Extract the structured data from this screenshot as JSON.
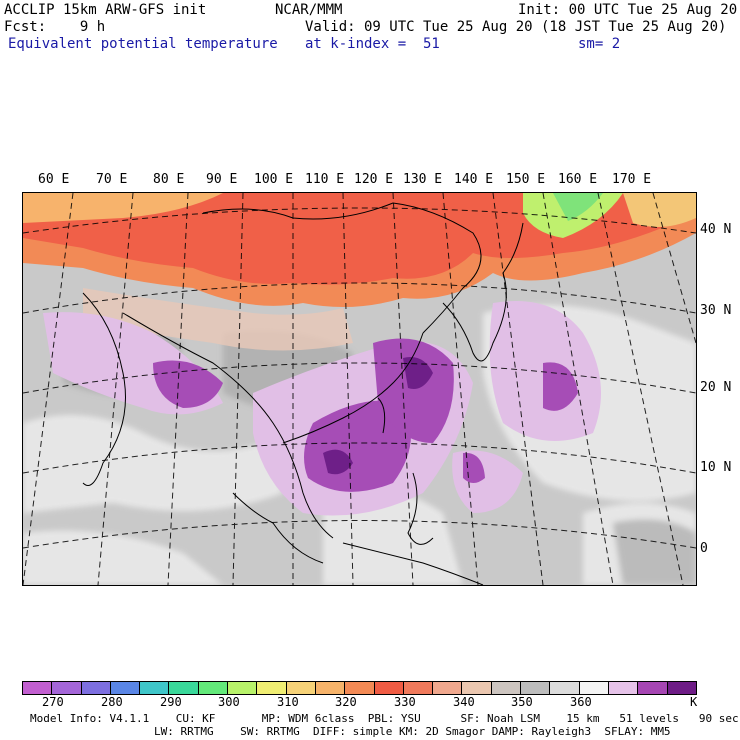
{
  "header": {
    "line1_left": "ACCLIP 15km ARW-GFS init",
    "line1_mid": "NCAR/MMM",
    "line1_right": "Init: 00 UTC Tue 25 Aug 20",
    "line2_left": "Fcst:    9 h",
    "line2_right": "Valid: 09 UTC Tue 25 Aug 20 (18 JST Tue 25 Aug 20)",
    "line3_left": "Equivalent potential temperature",
    "line3_mid": "at k-index =  51",
    "line3_right": "sm= 2"
  },
  "longitude_labels": [
    "60 E",
    "70 E",
    "80 E",
    "90 E",
    "100 E",
    "110 E",
    "120 E",
    "130 E",
    "140 E",
    "150 E",
    "160 E",
    "170 E"
  ],
  "latitude_labels": [
    "40 N",
    "30 N",
    "20 N",
    "10 N",
    "0"
  ],
  "colorbar": {
    "colors": [
      "#c25fd0",
      "#a466d8",
      "#7d6fe0",
      "#5a86e6",
      "#3fc6c9",
      "#3ad89a",
      "#63e97a",
      "#b8f26a",
      "#f0ee73",
      "#f6d278",
      "#f6b36a",
      "#f38a55",
      "#f05c44",
      "#f07a5c",
      "#f0a88e",
      "#ebc7b0",
      "#cdc5c0",
      "#bdbdbd",
      "#dcdcdc",
      "#f4f4f4",
      "#e6c3e9",
      "#a646b3",
      "#6e1c86"
    ],
    "tick_labels": [
      "270",
      "280",
      "290",
      "300",
      "310",
      "320",
      "330",
      "340",
      "350",
      "360",
      "K"
    ]
  },
  "model_info": {
    "line1": "Model Info: V4.1.1    CU: KF       MP: WDM 6class  PBL: YSU      SF: Noah LSM    15 km   51 levels   90 sec",
    "line2": "LW: RRTMG    SW: RRTMG  DIFF: simple KM: 2D Smagor DAMP: Rayleigh3  SFLAY: MM5"
  }
}
